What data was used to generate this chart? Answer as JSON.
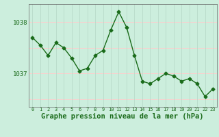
{
  "x": [
    0,
    1,
    2,
    3,
    4,
    5,
    6,
    7,
    8,
    9,
    10,
    11,
    12,
    13,
    14,
    15,
    16,
    17,
    18,
    19,
    20,
    21,
    22,
    23
  ],
  "y": [
    1037.7,
    1037.55,
    1037.35,
    1037.6,
    1037.5,
    1037.3,
    1037.05,
    1037.1,
    1037.35,
    1037.45,
    1037.85,
    1038.2,
    1037.9,
    1037.35,
    1036.85,
    1036.8,
    1036.9,
    1037.0,
    1036.95,
    1036.85,
    1036.9,
    1036.8,
    1036.55,
    1036.7
  ],
  "line_color": "#1a6b1a",
  "marker": "D",
  "marker_size": 2.5,
  "bg_color": "#cceedd",
  "plot_bg_color": "#cceedd",
  "grid_color_v": "#bbddcc",
  "grid_color_h": "#ffcccc",
  "axis_color": "#1a6b1a",
  "title": "Graphe pression niveau de la mer (hPa)",
  "title_fontsize": 7.5,
  "xlabel_ticks": [
    0,
    1,
    2,
    3,
    4,
    5,
    6,
    7,
    8,
    9,
    10,
    11,
    12,
    13,
    14,
    15,
    16,
    17,
    18,
    19,
    20,
    21,
    22,
    23
  ],
  "ytick_labels": [
    "1037",
    "1038"
  ],
  "ytick_values": [
    1037.0,
    1038.0
  ],
  "ylim": [
    1036.35,
    1038.35
  ],
  "xlim": [
    -0.5,
    23.5
  ]
}
